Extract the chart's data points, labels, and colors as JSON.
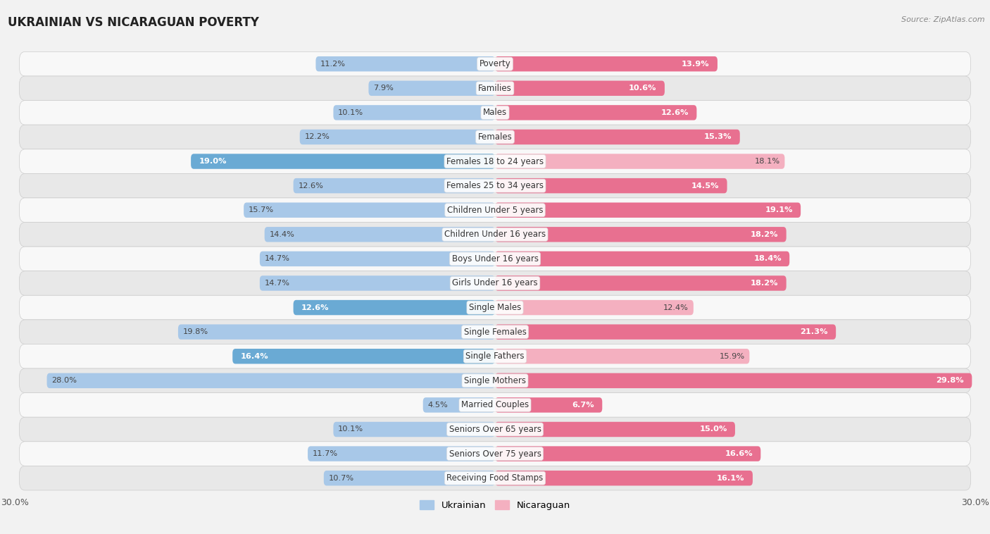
{
  "title": "UKRAINIAN VS NICARAGUAN POVERTY",
  "source": "Source: ZipAtlas.com",
  "categories": [
    "Poverty",
    "Families",
    "Males",
    "Females",
    "Females 18 to 24 years",
    "Females 25 to 34 years",
    "Children Under 5 years",
    "Children Under 16 years",
    "Boys Under 16 years",
    "Girls Under 16 years",
    "Single Males",
    "Single Females",
    "Single Fathers",
    "Single Mothers",
    "Married Couples",
    "Seniors Over 65 years",
    "Seniors Over 75 years",
    "Receiving Food Stamps"
  ],
  "ukrainian": [
    11.2,
    7.9,
    10.1,
    12.2,
    19.0,
    12.6,
    15.7,
    14.4,
    14.7,
    14.7,
    12.6,
    19.8,
    16.4,
    28.0,
    4.5,
    10.1,
    11.7,
    10.7
  ],
  "nicaraguan": [
    13.9,
    10.6,
    12.6,
    15.3,
    18.1,
    14.5,
    19.1,
    18.2,
    18.4,
    18.2,
    12.4,
    21.3,
    15.9,
    29.8,
    6.7,
    15.0,
    16.6,
    16.1
  ],
  "ukrainian_color": "#a8c8e8",
  "nicaraguan_color": "#f4b0c0",
  "ukrainian_highlight": "#6aaad4",
  "nicaraguan_highlight": "#e87090",
  "bg_color": "#f2f2f2",
  "row_bg_light": "#f8f8f8",
  "row_bg_dark": "#e8e8e8",
  "max_val": 30.0,
  "bar_height": 0.62,
  "legend_ukrainian": "Ukrainian",
  "legend_nicaraguan": "Nicaraguan",
  "title_fontsize": 12,
  "label_fontsize": 8.5,
  "value_fontsize": 8.2,
  "tick_fontsize": 9
}
